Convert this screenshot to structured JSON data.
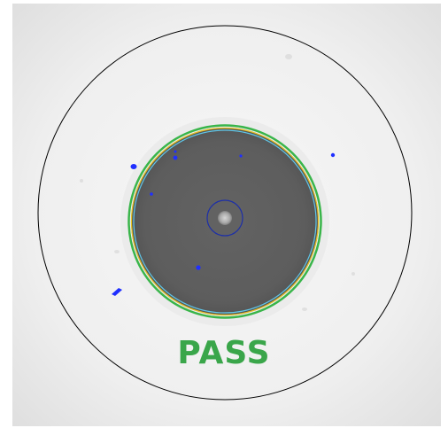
{
  "result": {
    "label": "PASS",
    "color": "#3aa64a"
  },
  "colors": {
    "background": "#efefef",
    "fiber_core": "#5f5f5f",
    "outer_zone_ring": "#000000",
    "boundary_ring_green": "#39b54a",
    "boundary_ring_yellow": "#e8c21f",
    "boundary_ring_cyan": "#5fc6e8",
    "center_ring": "#1d2fa8",
    "defect": "#1f2fff"
  }
}
